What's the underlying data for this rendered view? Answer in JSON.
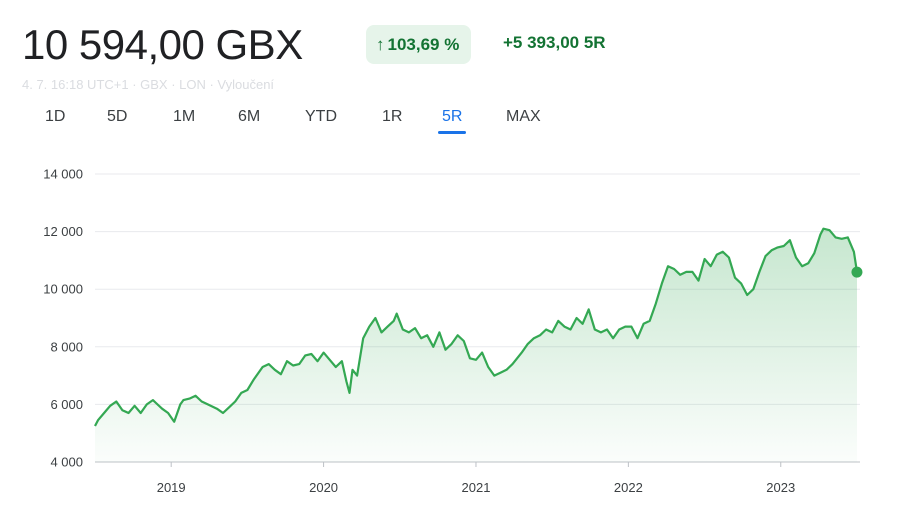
{
  "header": {
    "price": "10 594,00 GBX",
    "change_percent": "103,69 %",
    "change_arrow": "↑",
    "change_abs": "+5 393,00 5R",
    "meta": "4. 7. 16:18 UTC+1 · GBX · LON · Vyloučení"
  },
  "tabs": [
    {
      "label": "1D",
      "active": false
    },
    {
      "label": "5D",
      "active": false
    },
    {
      "label": "1M",
      "active": false
    },
    {
      "label": "6M",
      "active": false
    },
    {
      "label": "YTD",
      "active": false
    },
    {
      "label": "1R",
      "active": false
    },
    {
      "label": "5R",
      "active": true
    },
    {
      "label": "MAX",
      "active": false
    }
  ],
  "colors": {
    "line": "#34a853",
    "fill": "#34a853",
    "positive": "#137333",
    "badge_bg": "#e6f4ea",
    "active_tab": "#1a73e8"
  },
  "chart_data": {
    "type": "area",
    "title": "",
    "xlabel": "",
    "ylabel": "",
    "grid": true,
    "ylim": [
      4000,
      14000
    ],
    "yticks": [
      {
        "value": 4000,
        "label": "4 000"
      },
      {
        "value": 6000,
        "label": "6 000"
      },
      {
        "value": 8000,
        "label": "8 000"
      },
      {
        "value": 10000,
        "label": "10 000"
      },
      {
        "value": 12000,
        "label": "12 000"
      },
      {
        "value": 14000,
        "label": "14 000"
      }
    ],
    "xlim": [
      2018.5,
      2023.52
    ],
    "xticks": [
      {
        "value": 2019.0,
        "label": "2019"
      },
      {
        "value": 2020.0,
        "label": "2020"
      },
      {
        "value": 2021.0,
        "label": "2021"
      },
      {
        "value": 2022.0,
        "label": "2022"
      },
      {
        "value": 2023.0,
        "label": "2023"
      }
    ],
    "series": [
      {
        "x": [
          2018.5,
          2018.52,
          2018.56,
          2018.6,
          2018.64,
          2018.68,
          2018.72,
          2018.76,
          2018.8,
          2018.84,
          2018.88,
          2018.9,
          2018.94,
          2018.98,
          2019.02,
          2019.06,
          2019.08,
          2019.12,
          2019.16,
          2019.2,
          2019.24,
          2019.3,
          2019.34,
          2019.38,
          2019.42,
          2019.46,
          2019.5,
          2019.54,
          2019.6,
          2019.64,
          2019.68,
          2019.72,
          2019.76,
          2019.8,
          2019.84,
          2019.88,
          2019.92,
          2019.96,
          2020.0,
          2020.04,
          2020.08,
          2020.12,
          2020.15,
          2020.17,
          2020.19,
          2020.22,
          2020.26,
          2020.3,
          2020.34,
          2020.38,
          2020.42,
          2020.46,
          2020.48,
          2020.52,
          2020.56,
          2020.6,
          2020.64,
          2020.68,
          2020.72,
          2020.76,
          2020.8,
          2020.84,
          2020.88,
          2020.92,
          2020.96,
          2021.0,
          2021.04,
          2021.08,
          2021.12,
          2021.16,
          2021.2,
          2021.24,
          2021.3,
          2021.34,
          2021.38,
          2021.42,
          2021.46,
          2021.5,
          2021.54,
          2021.58,
          2021.62,
          2021.66,
          2021.7,
          2021.74,
          2021.78,
          2021.82,
          2021.86,
          2021.9,
          2021.94,
          2021.98,
          2022.02,
          2022.06,
          2022.1,
          2022.14,
          2022.18,
          2022.22,
          2022.26,
          2022.3,
          2022.34,
          2022.38,
          2022.42,
          2022.46,
          2022.5,
          2022.54,
          2022.58,
          2022.62,
          2022.66,
          2022.7,
          2022.74,
          2022.78,
          2022.82,
          2022.86,
          2022.9,
          2022.94,
          2022.98,
          2023.02,
          2023.06,
          2023.1,
          2023.14,
          2023.18,
          2023.22,
          2023.26,
          2023.28,
          2023.32,
          2023.36,
          2023.4,
          2023.44,
          2023.48,
          2023.5
        ],
        "y": [
          5250,
          5450,
          5700,
          5950,
          6100,
          5800,
          5700,
          5950,
          5700,
          6000,
          6150,
          6050,
          5850,
          5700,
          5400,
          6000,
          6150,
          6200,
          6300,
          6100,
          6000,
          5850,
          5700,
          5900,
          6100,
          6400,
          6500,
          6850,
          7300,
          7400,
          7200,
          7050,
          7500,
          7350,
          7400,
          7700,
          7750,
          7500,
          7800,
          7550,
          7300,
          7500,
          6800,
          6400,
          7200,
          7000,
          8300,
          8700,
          9000,
          8500,
          8700,
          8900,
          9150,
          8600,
          8500,
          8650,
          8300,
          8400,
          8000,
          8500,
          7900,
          8100,
          8400,
          8200,
          7600,
          7550,
          7800,
          7300,
          7000,
          7100,
          7200,
          7400,
          7800,
          8100,
          8300,
          8400,
          8600,
          8500,
          8900,
          8700,
          8600,
          9000,
          8800,
          9300,
          8600,
          8500,
          8600,
          8300,
          8600,
          8700,
          8700,
          8300,
          8800,
          8900,
          9500,
          10200,
          10800,
          10700,
          10500,
          10600,
          10600,
          10300,
          11050,
          10800,
          11200,
          11300,
          11100,
          10400,
          10200,
          9800,
          10000,
          10600,
          11150,
          11350,
          11450,
          11500,
          11700,
          11100,
          10800,
          10900,
          11250,
          11900,
          12100,
          12050,
          11800,
          11750,
          11800,
          11300,
          10594
        ]
      }
    ]
  }
}
